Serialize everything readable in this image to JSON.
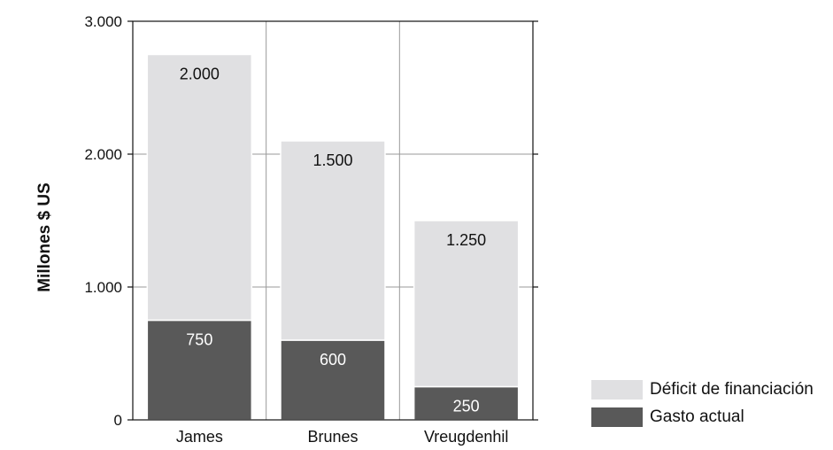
{
  "chart_data": {
    "type": "bar",
    "stacked": true,
    "categories": [
      "James",
      "Brunes",
      "Vreugdenhil"
    ],
    "series": [
      {
        "name": "Gasto actual",
        "values": [
          750,
          600,
          250
        ],
        "color": "#595959",
        "label_color": "#ffffff"
      },
      {
        "name": "Déficit de financiación",
        "values": [
          2000,
          1500,
          1250
        ],
        "color": "#e0e0e2",
        "label_color": "#111111"
      }
    ],
    "data_labels": {
      "Gasto actual": [
        "750",
        "600",
        "250"
      ],
      "Déficit de financiación": [
        "2.000",
        "1.500",
        "1.250"
      ]
    },
    "ylabel": "Millones $ US",
    "ylim": [
      0,
      3000
    ],
    "yticks": [
      0,
      1000,
      2000,
      3000
    ],
    "ytick_labels": [
      "0",
      "1.000",
      "2.000",
      "3.000"
    ],
    "grid": true,
    "legend_placement": "bottom-right",
    "legend_order": [
      "Déficit de financiación",
      "Gasto actual"
    ]
  }
}
